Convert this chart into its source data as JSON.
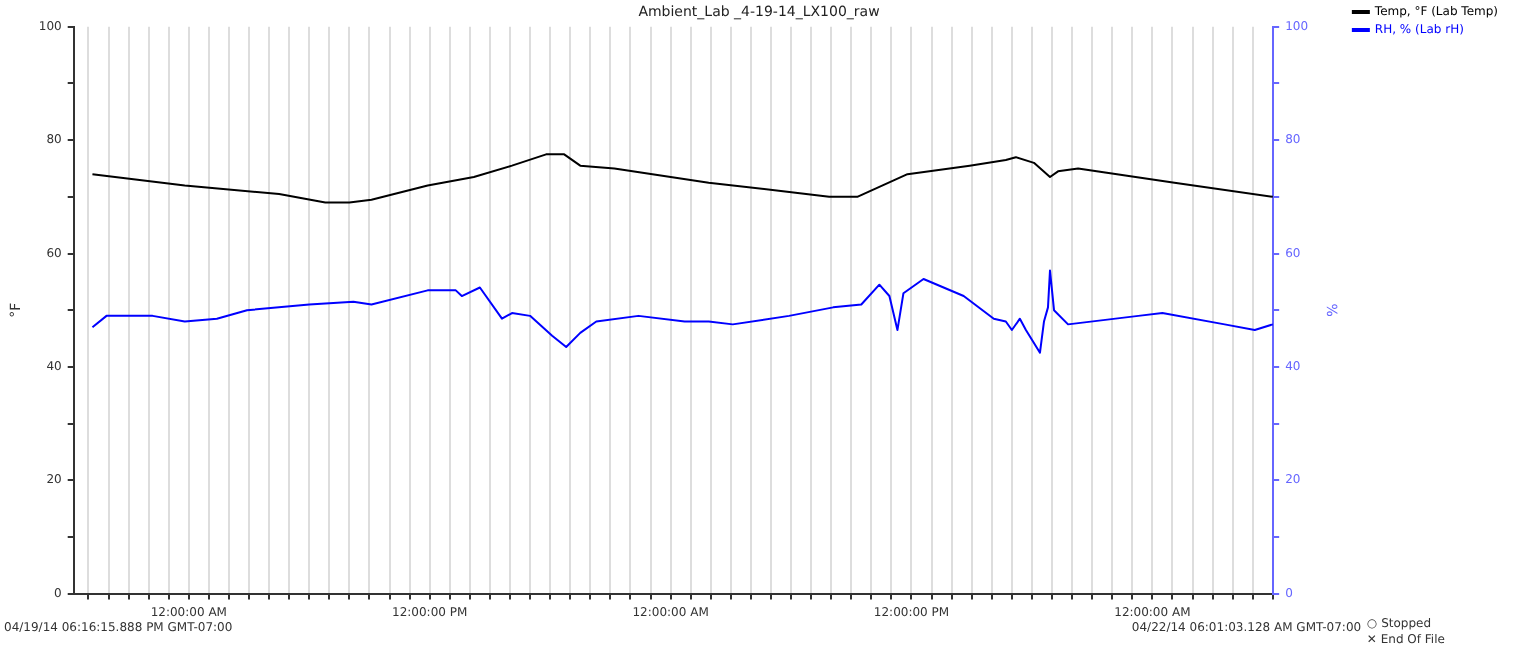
{
  "chart_data": {
    "type": "line",
    "title": "Ambient_Lab _4-19-14_LX100_raw",
    "ylabel": "°F",
    "y2label": "%",
    "xlim": [
      "--04-19T18:16",
      "--04-22T06:01"
    ],
    "xticks": [
      {
        "value": "--04-19T19:00",
        "label": null
      },
      {
        "value": "--04-19T20:00",
        "label": null
      },
      {
        "value": "--04-19T21:00",
        "label": null
      },
      {
        "value": "--04-19T22:00",
        "label": null
      },
      {
        "value": "--04-19T23:00",
        "label": null
      },
      {
        "value": "--04-20T00:00",
        "label": "12:00:00 AM"
      },
      {
        "value": "--04-20T01:00",
        "label": null
      },
      {
        "value": "--04-20T02:00",
        "label": null
      },
      {
        "value": "--04-20T03:00",
        "label": null
      },
      {
        "value": "--04-20T04:00",
        "label": null
      },
      {
        "value": "--04-20T05:00",
        "label": null
      },
      {
        "value": "--04-20T06:00",
        "label": null
      },
      {
        "value": "--04-20T07:00",
        "label": null
      },
      {
        "value": "--04-20T08:00",
        "label": null
      },
      {
        "value": "--04-20T09:00",
        "label": null
      },
      {
        "value": "--04-20T10:00",
        "label": null
      },
      {
        "value": "--04-20T11:00",
        "label": null
      },
      {
        "value": "--04-20T12:00",
        "label": "12:00:00 PM"
      },
      {
        "value": "--04-20T13:00",
        "label": null
      },
      {
        "value": "--04-20T14:00",
        "label": null
      },
      {
        "value": "--04-20T15:00",
        "label": null
      },
      {
        "value": "--04-20T16:00",
        "label": null
      },
      {
        "value": "--04-20T17:00",
        "label": null
      },
      {
        "value": "--04-20T18:00",
        "label": null
      },
      {
        "value": "--04-20T19:00",
        "label": null
      },
      {
        "value": "--04-20T20:00",
        "label": null
      },
      {
        "value": "--04-20T21:00",
        "label": null
      },
      {
        "value": "--04-20T22:00",
        "label": null
      },
      {
        "value": "--04-20T23:00",
        "label": null
      },
      {
        "value": "--04-21T00:00",
        "label": "12:00:00 AM"
      },
      {
        "value": "--04-21T01:00",
        "label": null
      },
      {
        "value": "--04-21T02:00",
        "label": null
      },
      {
        "value": "--04-21T03:00",
        "label": null
      },
      {
        "value": "--04-21T04:00",
        "label": null
      },
      {
        "value": "--04-21T05:00",
        "label": null
      },
      {
        "value": "--04-21T06:00",
        "label": null
      },
      {
        "value": "--04-21T07:00",
        "label": null
      },
      {
        "value": "--04-21T08:00",
        "label": null
      },
      {
        "value": "--04-21T09:00",
        "label": null
      },
      {
        "value": "--04-21T10:00",
        "label": null
      },
      {
        "value": "--04-21T11:00",
        "label": null
      },
      {
        "value": "--04-21T12:00",
        "label": "12:00:00 PM"
      },
      {
        "value": "--04-21T13:00",
        "label": null
      },
      {
        "value": "--04-21T14:00",
        "label": null
      },
      {
        "value": "--04-21T15:00",
        "label": null
      },
      {
        "value": "--04-21T16:00",
        "label": null
      },
      {
        "value": "--04-21T17:00",
        "label": null
      },
      {
        "value": "--04-21T18:00",
        "label": null
      },
      {
        "value": "--04-21T19:00",
        "label": null
      },
      {
        "value": "--04-21T20:00",
        "label": null
      },
      {
        "value": "--04-21T21:00",
        "label": null
      },
      {
        "value": "--04-21T22:00",
        "label": null
      },
      {
        "value": "--04-21T23:00",
        "label": null
      },
      {
        "value": "--04-22T00:00",
        "label": "12:00:00 AM"
      },
      {
        "value": "--04-22T01:00",
        "label": null
      },
      {
        "value": "--04-22T02:00",
        "label": null
      },
      {
        "value": "--04-22T03:00",
        "label": null
      },
      {
        "value": "--04-22T04:00",
        "label": null
      },
      {
        "value": "--04-22T05:00",
        "label": null
      },
      {
        "value": "--04-22T06:00",
        "label": null
      }
    ],
    "ylim": [
      0,
      100
    ],
    "yticks": [
      0,
      {
        "value": 10,
        "label": null
      },
      20,
      {
        "value": 30,
        "label": null
      },
      40,
      {
        "value": 50,
        "label": null
      },
      60,
      {
        "value": 70,
        "label": null
      },
      80,
      {
        "value": 90,
        "label": null
      },
      100
    ],
    "y2lim": [
      0,
      100
    ],
    "y2ticks": [
      0,
      {
        "value": 10,
        "label": null
      },
      20,
      {
        "value": 30,
        "label": null
      },
      40,
      {
        "value": 50,
        "label": null
      },
      60,
      {
        "value": 70,
        "label": null
      },
      80,
      {
        "value": 90,
        "label": null
      },
      100
    ],
    "series": [
      {
        "name": "Temp, °F (Lab Temp)",
        "color": "#000000",
        "x": [
          "--04-19T19:12",
          "--04-19T23:48",
          "--04-20T04:30",
          "--04-20T06:48",
          "--04-20T08:00",
          "--04-20T09:06",
          "--04-20T11:54",
          "--04-20T14:12",
          "--04-20T16:06",
          "--04-20T17:48",
          "--04-20T18:42",
          "--04-20T19:30",
          "--04-20T21:12",
          "--04-21T01:54",
          "--04-21T05:36",
          "--04-21T07:54",
          "--04-21T09:18",
          "--04-21T11:48",
          "--04-21T14:54",
          "--04-21T16:42",
          "--04-21T17:12",
          "--04-21T18:06",
          "--04-21T18:54",
          "--04-21T19:18",
          "--04-21T20:18",
          "--04-22T01:06",
          "--04-22T06:00"
        ],
        "values": [
          74,
          72,
          70.5,
          69,
          69,
          69.5,
          72,
          73.5,
          75.5,
          77.5,
          77.5,
          75.5,
          75,
          72.5,
          71,
          70,
          70,
          74,
          75.5,
          76.5,
          77,
          76,
          73.5,
          74.5,
          75,
          72.5,
          70
        ]
      },
      {
        "name": "RH, % (Lab rH)",
        "color": "#0000ff",
        "axis": "y2",
        "x": [
          "--04-19T19:12",
          "--04-19T19:54",
          "--04-19T22:12",
          "--04-19T23:48",
          "--04-20T01:24",
          "--04-20T02:54",
          "--04-20T06:00",
          "--04-20T08:12",
          "--04-20T09:06",
          "--04-20T11:54",
          "--04-20T13:18",
          "--04-20T13:36",
          "--04-20T14:30",
          "--04-20T15:36",
          "--04-20T16:06",
          "--04-20T17:00",
          "--04-20T18:06",
          "--04-20T18:48",
          "--04-20T19:30",
          "--04-20T20:18",
          "--04-20T22:24",
          "--04-21T00:42",
          "--04-21T01:54",
          "--04-21T03:06",
          "--04-21T05:54",
          "--04-21T08:06",
          "--04-21T09:30",
          "--04-21T10:24",
          "--04-21T10:54",
          "--04-21T11:18",
          "--04-21T11:36",
          "--04-21T12:36",
          "--04-21T14:36",
          "--04-21T16:06",
          "--04-21T16:42",
          "--04-21T17:00",
          "--04-21T17:24",
          "--04-21T17:42",
          "--04-21T18:24",
          "--04-21T18:36",
          "--04-21T18:48",
          "--04-21T18:54",
          "--04-21T19:06",
          "--04-21T19:48",
          "--04-21T23:18",
          "--04-22T00:30",
          "--04-22T03:36",
          "--04-22T05:06",
          "--04-22T06:00"
        ],
        "values": [
          47,
          49,
          49,
          48,
          48.5,
          50,
          51,
          51.5,
          51,
          53.5,
          53.5,
          52.5,
          54,
          48.5,
          49.5,
          49,
          45.5,
          43.5,
          46,
          48,
          49,
          48,
          48,
          47.5,
          49,
          50.5,
          51,
          54.5,
          52.5,
          46.5,
          53,
          55.5,
          52.5,
          48.5,
          48,
          46.5,
          48.5,
          46.5,
          42.5,
          48,
          50.5,
          57,
          50,
          47.5,
          49,
          49.5,
          47.5,
          46.5,
          47.5
        ]
      }
    ],
    "grid": "x",
    "legend": "right",
    "annotations": [
      "04/19/14 06:16:15.888 PM GMT-07:00",
      "04/22/14 06:01:03.128 AM GMT-07:00",
      "○ Stopped",
      "✕ End Of File"
    ]
  }
}
